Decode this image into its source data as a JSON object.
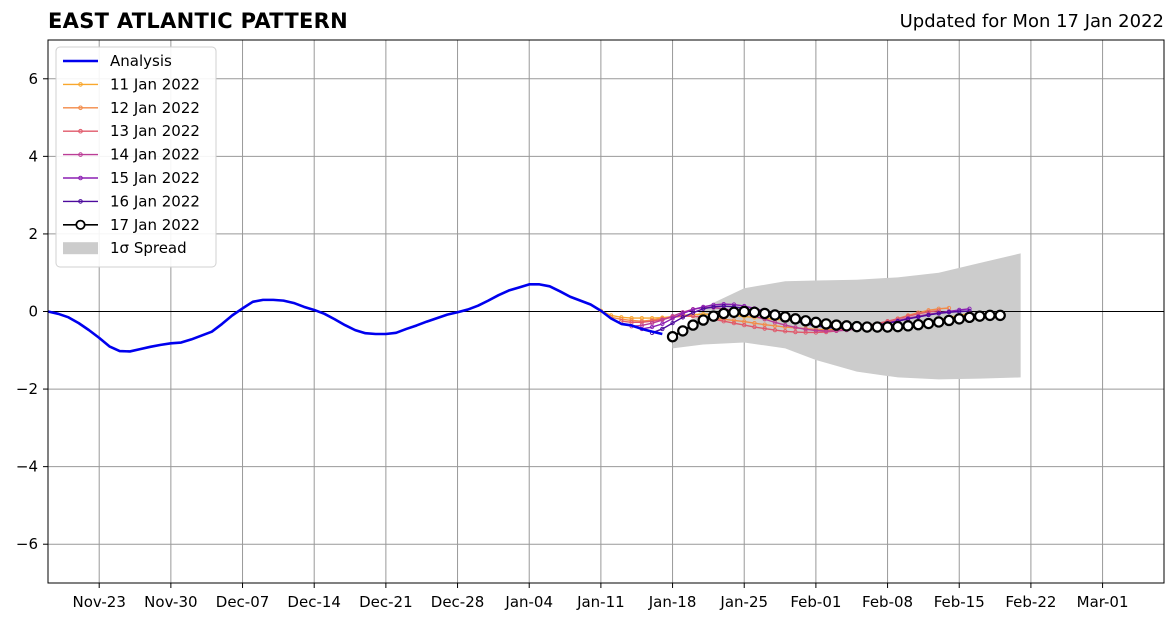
{
  "title": "EAST ATLANTIC PATTERN",
  "subtitle": "Updated for Mon 17 Jan 2022",
  "chart_data": {
    "type": "line",
    "title": "EAST ATLANTIC PATTERN",
    "xlim": [
      "2021-11-18",
      "2022-03-07"
    ],
    "ylim": [
      -7,
      7
    ],
    "grid": true,
    "zero_line": true,
    "legend_position": "upper-left",
    "x_ticks": [
      "Nov-23",
      "Nov-30",
      "Dec-07",
      "Dec-14",
      "Dec-21",
      "Dec-28",
      "Jan-04",
      "Jan-11",
      "Jan-18",
      "Jan-25",
      "Feb-01",
      "Feb-08",
      "Feb-15",
      "Feb-22",
      "Mar-01"
    ],
    "x_tick_dates": [
      "2021-11-23",
      "2021-11-30",
      "2021-12-07",
      "2021-12-14",
      "2021-12-21",
      "2021-12-28",
      "2022-01-04",
      "2022-01-11",
      "2022-01-18",
      "2022-01-25",
      "2022-02-01",
      "2022-02-08",
      "2022-02-15",
      "2022-02-22",
      "2022-03-01"
    ],
    "y_ticks": [
      -6,
      -4,
      -2,
      0,
      2,
      4,
      6
    ],
    "y_tick_labels": [
      "−6",
      "−4",
      "−2",
      "0",
      "2",
      "4",
      "6"
    ],
    "legend": [
      "Analysis",
      "11 Jan 2022",
      "12 Jan 2022",
      "13 Jan 2022",
      "14 Jan 2022",
      "15 Jan 2022",
      "16 Jan 2022",
      "17 Jan 2022",
      "1σ Spread"
    ],
    "analysis": {
      "name": "Analysis",
      "color": "#0000ee",
      "x": [
        "2021-11-18",
        "2021-11-19",
        "2021-11-20",
        "2021-11-21",
        "2021-11-22",
        "2021-11-23",
        "2021-11-24",
        "2021-11-25",
        "2021-11-26",
        "2021-11-27",
        "2021-11-28",
        "2021-11-29",
        "2021-11-30",
        "2021-12-01",
        "2021-12-02",
        "2021-12-03",
        "2021-12-04",
        "2021-12-05",
        "2021-12-06",
        "2021-12-07",
        "2021-12-08",
        "2021-12-09",
        "2021-12-10",
        "2021-12-11",
        "2021-12-12",
        "2021-12-13",
        "2021-12-14",
        "2021-12-15",
        "2021-12-16",
        "2021-12-17",
        "2021-12-18",
        "2021-12-19",
        "2021-12-20",
        "2021-12-21",
        "2021-12-22",
        "2021-12-23",
        "2021-12-24",
        "2021-12-25",
        "2021-12-26",
        "2021-12-27",
        "2021-12-28",
        "2021-12-29",
        "2021-12-30",
        "2021-12-31",
        "2022-01-01",
        "2022-01-02",
        "2022-01-03",
        "2022-01-04",
        "2022-01-05",
        "2022-01-06",
        "2022-01-07",
        "2022-01-08",
        "2022-01-09",
        "2022-01-10",
        "2022-01-11",
        "2022-01-12",
        "2022-01-13",
        "2022-01-14",
        "2022-01-15",
        "2022-01-16",
        "2022-01-17"
      ],
      "values": [
        0.0,
        -0.06,
        -0.15,
        -0.3,
        -0.48,
        -0.68,
        -0.9,
        -1.02,
        -1.03,
        -0.97,
        -0.91,
        -0.86,
        -0.82,
        -0.8,
        -0.72,
        -0.62,
        -0.52,
        -0.32,
        -0.1,
        0.08,
        0.25,
        0.3,
        0.3,
        0.28,
        0.22,
        0.12,
        0.04,
        -0.06,
        -0.2,
        -0.35,
        -0.48,
        -0.56,
        -0.58,
        -0.58,
        -0.55,
        -0.45,
        -0.36,
        -0.26,
        -0.17,
        -0.08,
        -0.02,
        0.05,
        0.15,
        0.28,
        0.42,
        0.54,
        0.62,
        0.7,
        0.7,
        0.65,
        0.52,
        0.38,
        0.28,
        0.18,
        0.02,
        -0.18,
        -0.32,
        -0.36,
        -0.45,
        -0.52,
        -0.58
      ]
    },
    "series": [
      {
        "name": "11 Jan 2022",
        "color": "#f9a72c",
        "start": "2022-01-11",
        "values": [
          0.02,
          -0.1,
          -0.15,
          -0.17,
          -0.17,
          -0.17,
          -0.16,
          -0.13,
          -0.1,
          -0.08,
          -0.07,
          -0.07,
          -0.08,
          -0.1,
          -0.13,
          -0.15,
          -0.18,
          -0.2,
          -0.22,
          -0.23,
          -0.25,
          -0.28,
          -0.3,
          -0.33,
          -0.36,
          -0.4,
          -0.42,
          -0.43,
          -0.43,
          -0.41,
          -0.38,
          -0.34,
          -0.28,
          -0.22,
          -0.15,
          -0.1,
          -0.05
        ]
      },
      {
        "name": "12 Jan 2022",
        "color": "#f38a47",
        "start": "2022-01-12",
        "values": [
          -0.15,
          -0.2,
          -0.23,
          -0.25,
          -0.22,
          -0.18,
          -0.14,
          -0.12,
          -0.12,
          -0.14,
          -0.17,
          -0.2,
          -0.23,
          -0.26,
          -0.3,
          -0.34,
          -0.37,
          -0.4,
          -0.42,
          -0.44,
          -0.46,
          -0.47,
          -0.47,
          -0.46,
          -0.44,
          -0.4,
          -0.34,
          -0.27,
          -0.18,
          -0.1,
          -0.03,
          0.03,
          0.07,
          0.09
        ]
      },
      {
        "name": "13 Jan 2022",
        "color": "#e0586a",
        "start": "2022-01-13",
        "values": [
          -0.25,
          -0.28,
          -0.28,
          -0.25,
          -0.2,
          -0.15,
          -0.12,
          -0.12,
          -0.15,
          -0.2,
          -0.25,
          -0.3,
          -0.35,
          -0.4,
          -0.44,
          -0.48,
          -0.51,
          -0.53,
          -0.54,
          -0.54,
          -0.53,
          -0.5,
          -0.46,
          -0.41,
          -0.36,
          -0.31,
          -0.25,
          -0.19,
          -0.12,
          -0.06,
          -0.01,
          0.02
        ]
      },
      {
        "name": "14 Jan 2022",
        "color": "#bb3d96",
        "start": "2022-01-14",
        "values": [
          -0.38,
          -0.36,
          -0.3,
          -0.22,
          -0.12,
          -0.02,
          0.06,
          0.1,
          0.1,
          0.07,
          0.02,
          -0.04,
          -0.12,
          -0.2,
          -0.28,
          -0.35,
          -0.41,
          -0.46,
          -0.49,
          -0.5,
          -0.5,
          -0.48,
          -0.45,
          -0.4,
          -0.35,
          -0.29,
          -0.23,
          -0.17,
          -0.12,
          -0.07,
          -0.03,
          0.0
        ]
      },
      {
        "name": "15 Jan 2022",
        "color": "#8c1fb3",
        "start": "2022-01-15",
        "values": [
          -0.45,
          -0.4,
          -0.32,
          -0.18,
          -0.05,
          0.05,
          0.12,
          0.17,
          0.19,
          0.18,
          0.14,
          0.08,
          0.01,
          -0.07,
          -0.15,
          -0.22,
          -0.29,
          -0.35,
          -0.4,
          -0.43,
          -0.44,
          -0.43,
          -0.4,
          -0.36,
          -0.31,
          -0.25,
          -0.19,
          -0.14,
          -0.09,
          -0.04,
          0.0,
          0.04,
          0.07
        ]
      },
      {
        "name": "16 Jan 2022",
        "color": "#4c0a9d",
        "start": "2022-01-16",
        "values": [
          -0.55,
          -0.45,
          -0.3,
          -0.15,
          -0.03,
          0.07,
          0.12,
          0.14,
          0.12,
          0.08,
          0.03,
          -0.04,
          -0.11,
          -0.18,
          -0.25,
          -0.32,
          -0.37,
          -0.41,
          -0.43,
          -0.43,
          -0.42,
          -0.39,
          -0.35,
          -0.3,
          -0.25,
          -0.19,
          -0.14,
          -0.09,
          -0.05,
          -0.02,
          0.0,
          0.01
        ]
      },
      {
        "name": "17 Jan 2022",
        "color": "#000000",
        "marker": "open-circle",
        "start": "2022-01-18",
        "values": [
          -0.65,
          -0.5,
          -0.35,
          -0.22,
          -0.12,
          -0.05,
          -0.02,
          0.0,
          -0.02,
          -0.05,
          -0.09,
          -0.14,
          -0.19,
          -0.24,
          -0.28,
          -0.32,
          -0.35,
          -0.37,
          -0.39,
          -0.4,
          -0.4,
          -0.4,
          -0.39,
          -0.37,
          -0.34,
          -0.31,
          -0.27,
          -0.23,
          -0.19,
          -0.15,
          -0.12,
          -0.1,
          -0.1
        ]
      }
    ],
    "spread": {
      "name": "1σ Spread",
      "color": "#cccccc",
      "x": [
        "2022-01-18",
        "2022-01-21",
        "2022-01-25",
        "2022-01-29",
        "2022-02-01",
        "2022-02-05",
        "2022-02-09",
        "2022-02-13",
        "2022-02-17",
        "2022-02-21"
      ],
      "upper": [
        -0.85,
        0.1,
        0.6,
        0.78,
        0.8,
        0.82,
        0.88,
        1.0,
        1.25,
        1.5
      ],
      "lower": [
        -0.95,
        -0.85,
        -0.8,
        -0.95,
        -1.25,
        -1.55,
        -1.7,
        -1.75,
        -1.73,
        -1.7
      ]
    }
  }
}
